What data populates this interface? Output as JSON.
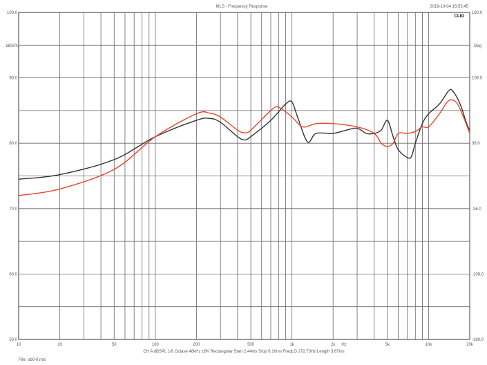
{
  "chart_data": {
    "type": "line",
    "title": "MLS - Frequency Response",
    "timestamp": "2019-10-04 16:53:45",
    "logo": "CLIO",
    "ylabel": "dBSPL",
    "y2label": "Deg",
    "xunit": "Hz",
    "xscale": "log",
    "xlim": [
      10,
      20000
    ],
    "ylim": [
      50,
      100
    ],
    "y2lim": [
      -180,
      180
    ],
    "grid": true,
    "xticks": [
      {
        "v": 10,
        "l": "10"
      },
      {
        "v": 20,
        "l": "20"
      },
      {
        "v": 50,
        "l": "50"
      },
      {
        "v": 100,
        "l": "100"
      },
      {
        "v": 200,
        "l": "200"
      },
      {
        "v": 500,
        "l": "500"
      },
      {
        "v": 1000,
        "l": "1k"
      },
      {
        "v": 2000,
        "l": "2k"
      },
      {
        "v": 5000,
        "l": "5k"
      },
      {
        "v": 10000,
        "l": "10k"
      },
      {
        "v": 20000,
        "l": "20k"
      }
    ],
    "yticks": [
      {
        "v": 100,
        "l": "100.0"
      },
      {
        "v": 90,
        "l": "90.0"
      },
      {
        "v": 80,
        "l": "80.0"
      },
      {
        "v": 70,
        "l": "70.0"
      },
      {
        "v": 60,
        "l": "60.0"
      },
      {
        "v": 50,
        "l": "50.0"
      }
    ],
    "y2ticks": [
      {
        "v": 180,
        "l": "180.0"
      },
      {
        "v": 108,
        "l": "108.0"
      },
      {
        "v": 36,
        "l": "36.0"
      },
      {
        "v": -36,
        "l": "-36.0"
      },
      {
        "v": -108,
        "l": "-108.0"
      },
      {
        "v": -180,
        "l": "-180.0"
      }
    ],
    "series": [
      {
        "color": "#333333",
        "x": [
          10,
          20,
          50,
          100,
          200,
          250,
          300,
          400,
          450,
          500,
          700,
          900,
          1000,
          1100,
          1300,
          1500,
          2000,
          2500,
          3000,
          3500,
          4000,
          4500,
          5000,
          5500,
          6000,
          7000,
          7500,
          8000,
          9000,
          10000,
          12000,
          14000,
          15000,
          17000,
          19000,
          20000
        ],
        "y": [
          74.5,
          75.2,
          77.5,
          81,
          83.5,
          83.8,
          83.2,
          81,
          80.5,
          81,
          83.5,
          86,
          86.3,
          84,
          80.2,
          81.5,
          81.5,
          82,
          82.3,
          81.5,
          81.5,
          82,
          83.5,
          81,
          79,
          77.8,
          78,
          80,
          83,
          84.5,
          86,
          88,
          88,
          86,
          83,
          82
        ]
      },
      {
        "color": "#e8442a",
        "x": [
          10,
          20,
          50,
          100,
          200,
          250,
          300,
          400,
          450,
          500,
          700,
          800,
          1000,
          1200,
          1500,
          2000,
          3000,
          4000,
          4500,
          5000,
          5500,
          6000,
          7000,
          8000,
          9000,
          10000,
          12000,
          14000,
          16000,
          18000,
          20000
        ],
        "y": [
          72,
          73,
          76,
          81,
          84.5,
          84.6,
          84,
          82,
          81.6,
          82,
          85,
          85.5,
          84,
          82.5,
          83,
          83,
          82.5,
          81.5,
          80,
          79.5,
          80,
          81.5,
          81.5,
          81.8,
          82.5,
          82.5,
          84.5,
          86.5,
          86.2,
          84,
          81.5
        ]
      }
    ]
  },
  "footer": {
    "settings": "CH A   dBSPL   1/6 Octave   48kHz   16K   Rectangular   Start 2.44ms   Stop 6.10ms   FreqLO 272.73Hz   Length 3.67ms",
    "file": "File: ob0-0.mls"
  }
}
